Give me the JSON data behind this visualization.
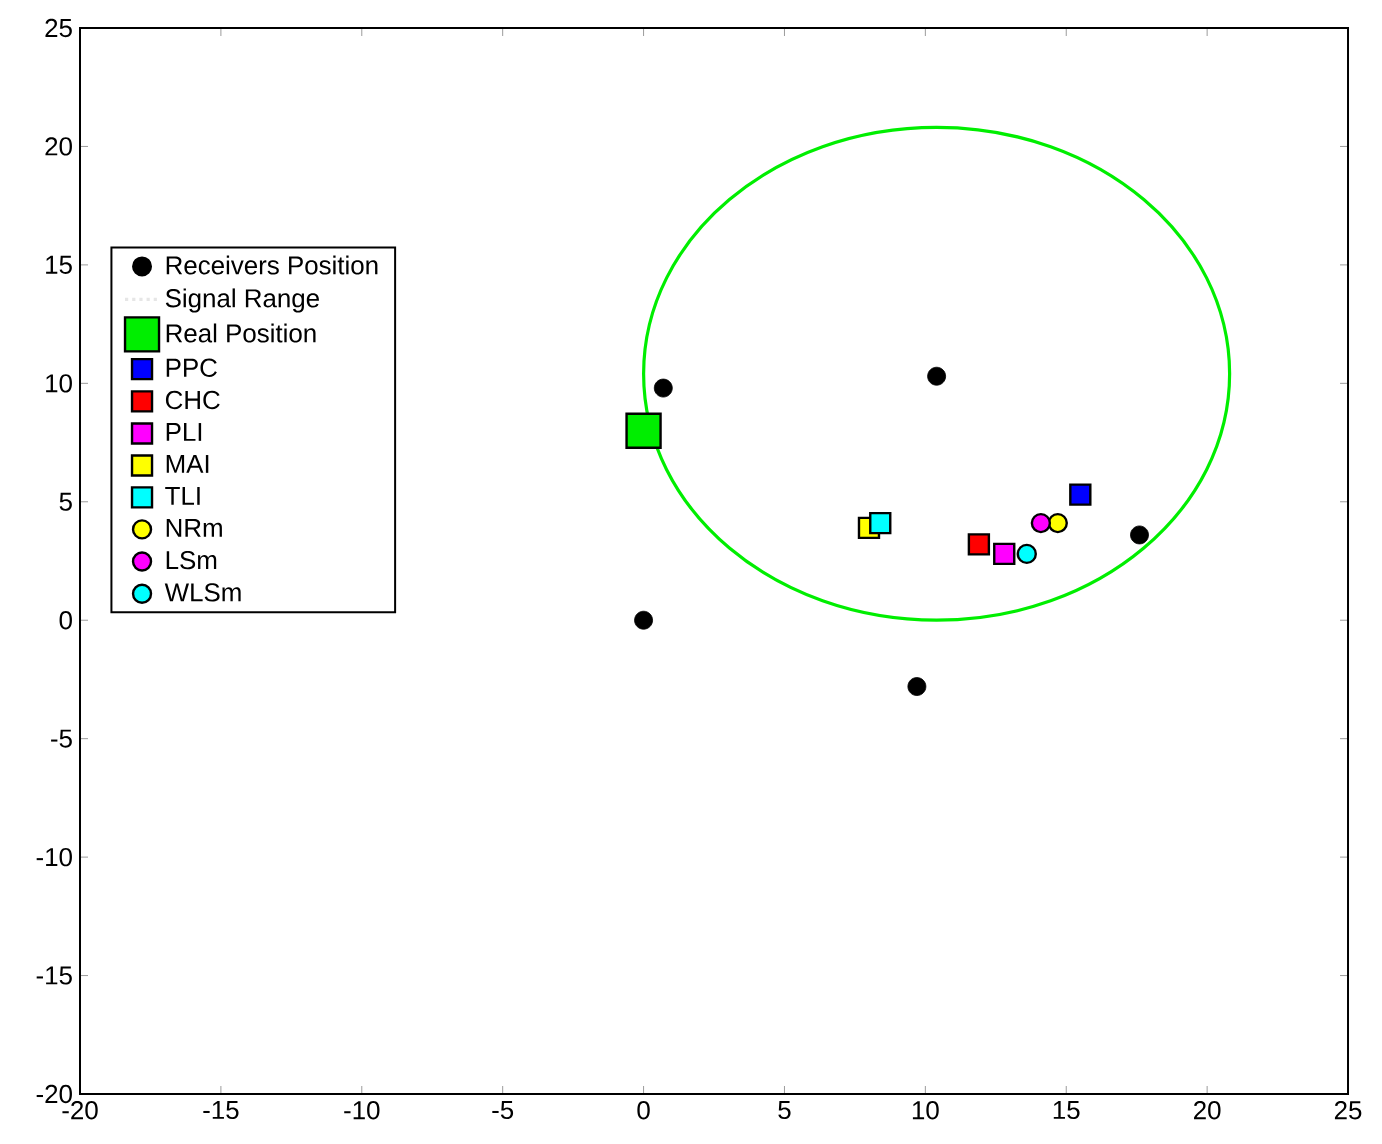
{
  "chart_data": {
    "type": "scatter",
    "xlim": [
      -20,
      25
    ],
    "ylim": [
      -20,
      25
    ],
    "xticks": [
      -20,
      -15,
      -10,
      -5,
      0,
      5,
      10,
      15,
      20,
      25
    ],
    "yticks": [
      -20,
      -15,
      -10,
      -5,
      0,
      5,
      10,
      15,
      20,
      25
    ],
    "grid": false,
    "legend": "left",
    "series": [
      {
        "name": "Receivers Position",
        "color": "#000000",
        "marker": "circle",
        "x": [
          0.7,
          10.4,
          0,
          9.7,
          17.6
        ],
        "values": [
          9.8,
          10.3,
          0,
          -2.8,
          3.6
        ]
      },
      {
        "name": "Signal Range",
        "type": "line",
        "color": "#e6e6e6",
        "line_style": "dotted",
        "marker": "none"
      },
      {
        "name": "Real Position",
        "color": "#00ee00",
        "marker": "square",
        "x": [
          0
        ],
        "values": [
          8
        ]
      },
      {
        "name": "PPC",
        "color": "#0000ff",
        "marker": "square",
        "x": [
          15.5
        ],
        "values": [
          5.3
        ]
      },
      {
        "name": "CHC",
        "color": "#ff0000",
        "marker": "square",
        "x": [
          11.9
        ],
        "values": [
          3.2
        ]
      },
      {
        "name": "PLI",
        "color": "#ff00ff",
        "marker": "square",
        "x": [
          12.8
        ],
        "values": [
          2.8
        ]
      },
      {
        "name": "MAI",
        "color": "#ffff00",
        "marker": "square",
        "x": [
          8.0
        ],
        "values": [
          3.9
        ]
      },
      {
        "name": "TLI",
        "color": "#00ffff",
        "marker": "square",
        "x": [
          8.4
        ],
        "values": [
          4.1
        ]
      },
      {
        "name": "NRm",
        "color": "#ffff00",
        "marker": "circle",
        "x": [
          14.7
        ],
        "values": [
          4.1
        ]
      },
      {
        "name": "LSm",
        "color": "#ff00ff",
        "marker": "circle",
        "x": [
          14.1
        ],
        "values": [
          4.1
        ]
      },
      {
        "name": "WLSm",
        "color": "#00ffff",
        "marker": "circle",
        "x": [
          13.6
        ],
        "values": [
          2.8
        ]
      }
    ]
  }
}
